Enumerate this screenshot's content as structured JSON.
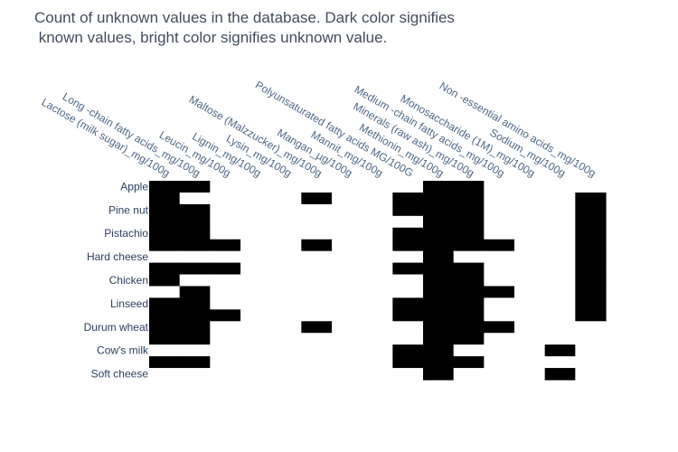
{
  "chart_data": {
    "type": "heatmap",
    "title_lines": [
      "Count of unknown values in the database. Dark color signifies",
      " known values, bright color signifies unknown value."
    ],
    "x_labels": [
      "Lactose (milk sugar)_mg/100g",
      "Long -chain fatty acids_mg/100g",
      "Leucin_mg/100g",
      "Lignin_mg/100g",
      "Lysin_mg/100g",
      "Maltose (Malzzucker)_mg/100g",
      "Mangan_µg/100g",
      "Mannit_mg/100g",
      "Polyunsaturated fatty acids MG/100G",
      "Methionin_mg/100g",
      "Minerals (raw ash)_mg/100g",
      "Medium -chain fatty acids_mg/100g",
      "Monosaccharide (1M)_mg/100g",
      "Sodium_mg/100g",
      "Non -essential amino acids_mg/100g"
    ],
    "y_labels": [
      "Apple",
      "Pine nut",
      "Pistachio",
      "Hard cheese",
      "Chicken",
      "Linseed",
      "Durum wheat",
      "Cow's milk",
      "Soft cheese"
    ],
    "row_count": 17,
    "y_label_rows": [
      0,
      2,
      4,
      6,
      8,
      10,
      12,
      14,
      16
    ],
    "legend": "none",
    "colors": {
      "known": "#000000",
      "unknown": "#ffffff"
    },
    "known_matrix": [
      [
        1,
        1,
        0,
        0,
        0,
        0,
        0,
        0,
        0,
        1,
        1,
        0,
        0,
        0,
        0
      ],
      [
        1,
        0,
        0,
        0,
        0,
        1,
        0,
        0,
        1,
        1,
        1,
        0,
        0,
        0,
        1
      ],
      [
        1,
        1,
        0,
        0,
        0,
        0,
        0,
        0,
        1,
        1,
        1,
        0,
        0,
        0,
        1
      ],
      [
        1,
        1,
        0,
        0,
        0,
        0,
        0,
        0,
        0,
        1,
        1,
        0,
        0,
        0,
        1
      ],
      [
        1,
        1,
        0,
        0,
        0,
        0,
        0,
        0,
        1,
        1,
        1,
        0,
        0,
        0,
        1
      ],
      [
        1,
        1,
        1,
        0,
        0,
        1,
        0,
        0,
        1,
        1,
        1,
        1,
        0,
        0,
        1
      ],
      [
        0,
        0,
        0,
        0,
        0,
        0,
        0,
        0,
        0,
        1,
        0,
        0,
        0,
        0,
        1
      ],
      [
        1,
        1,
        1,
        0,
        0,
        0,
        0,
        0,
        1,
        1,
        1,
        0,
        0,
        0,
        1
      ],
      [
        1,
        0,
        0,
        0,
        0,
        0,
        0,
        0,
        0,
        1,
        1,
        0,
        0,
        0,
        1
      ],
      [
        0,
        1,
        0,
        0,
        0,
        0,
        0,
        0,
        0,
        1,
        1,
        1,
        0,
        0,
        1
      ],
      [
        1,
        1,
        0,
        0,
        0,
        0,
        0,
        0,
        1,
        1,
        1,
        0,
        0,
        0,
        1
      ],
      [
        1,
        1,
        1,
        0,
        0,
        0,
        0,
        0,
        1,
        1,
        1,
        0,
        0,
        0,
        1
      ],
      [
        1,
        1,
        0,
        0,
        0,
        1,
        0,
        0,
        0,
        1,
        1,
        1,
        0,
        0,
        0
      ],
      [
        1,
        1,
        0,
        0,
        0,
        0,
        0,
        0,
        0,
        1,
        1,
        0,
        0,
        0,
        0
      ],
      [
        0,
        0,
        0,
        0,
        0,
        0,
        0,
        0,
        1,
        1,
        0,
        0,
        0,
        1,
        0
      ],
      [
        1,
        1,
        0,
        0,
        0,
        0,
        0,
        0,
        1,
        1,
        1,
        0,
        0,
        0,
        0
      ],
      [
        0,
        0,
        0,
        0,
        0,
        0,
        0,
        0,
        0,
        1,
        0,
        0,
        0,
        1,
        0
      ]
    ]
  }
}
